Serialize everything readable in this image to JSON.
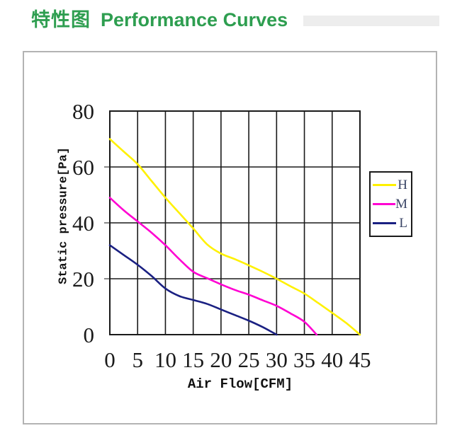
{
  "header": {
    "title_zh": "特性图",
    "title_en": "Performance Curves",
    "title_color": "#2e9e50"
  },
  "chart_data": {
    "type": "line",
    "title": "Performance Curves",
    "xlabel": "Air Flow[CFM]",
    "ylabel": "Static pressure[Pa]",
    "xlim": [
      0,
      45
    ],
    "ylim": [
      0,
      80
    ],
    "x_ticks": [
      0,
      5,
      10,
      15,
      20,
      25,
      30,
      35,
      40,
      45
    ],
    "y_ticks": [
      0,
      20,
      40,
      60,
      80
    ],
    "grid": true,
    "legend_position": "right",
    "colors": {
      "grid": "#1a1a1a",
      "tick_stub": "#8a8a8a"
    },
    "series": [
      {
        "name": "H",
        "color": "#fff100",
        "points": [
          [
            0,
            70
          ],
          [
            2.5,
            65.5
          ],
          [
            5,
            61
          ],
          [
            7.5,
            55
          ],
          [
            10,
            49
          ],
          [
            12.5,
            43.5
          ],
          [
            15,
            38
          ],
          [
            17.5,
            32.3
          ],
          [
            20,
            29
          ],
          [
            22.5,
            27
          ],
          [
            25,
            24.8
          ],
          [
            27.5,
            22.5
          ],
          [
            30,
            20
          ],
          [
            32.5,
            17.3
          ],
          [
            35,
            14.7
          ],
          [
            37.5,
            11.3
          ],
          [
            40,
            7.8
          ],
          [
            42.5,
            4.2
          ],
          [
            45,
            0
          ]
        ]
      },
      {
        "name": "M",
        "color": "#ff00d2",
        "points": [
          [
            0,
            49
          ],
          [
            2.5,
            44.5
          ],
          [
            5,
            40.5
          ],
          [
            7.5,
            36.5
          ],
          [
            10,
            32
          ],
          [
            12.5,
            27
          ],
          [
            15,
            22.5
          ],
          [
            17.5,
            20.2
          ],
          [
            20,
            18
          ],
          [
            22.5,
            16
          ],
          [
            25,
            14.3
          ],
          [
            27.5,
            12.3
          ],
          [
            30,
            10.3
          ],
          [
            32.5,
            7.6
          ],
          [
            35,
            4.6
          ],
          [
            37.2,
            0
          ]
        ]
      },
      {
        "name": "L",
        "color": "#1a2082",
        "points": [
          [
            0,
            32
          ],
          [
            2.5,
            28.5
          ],
          [
            5,
            25
          ],
          [
            7.5,
            21
          ],
          [
            10,
            16.5
          ],
          [
            12.5,
            13.8
          ],
          [
            15,
            12.4
          ],
          [
            17.5,
            11
          ],
          [
            20,
            9
          ],
          [
            22.5,
            7
          ],
          [
            25,
            5
          ],
          [
            27.5,
            2.7
          ],
          [
            30,
            0
          ]
        ]
      }
    ]
  }
}
